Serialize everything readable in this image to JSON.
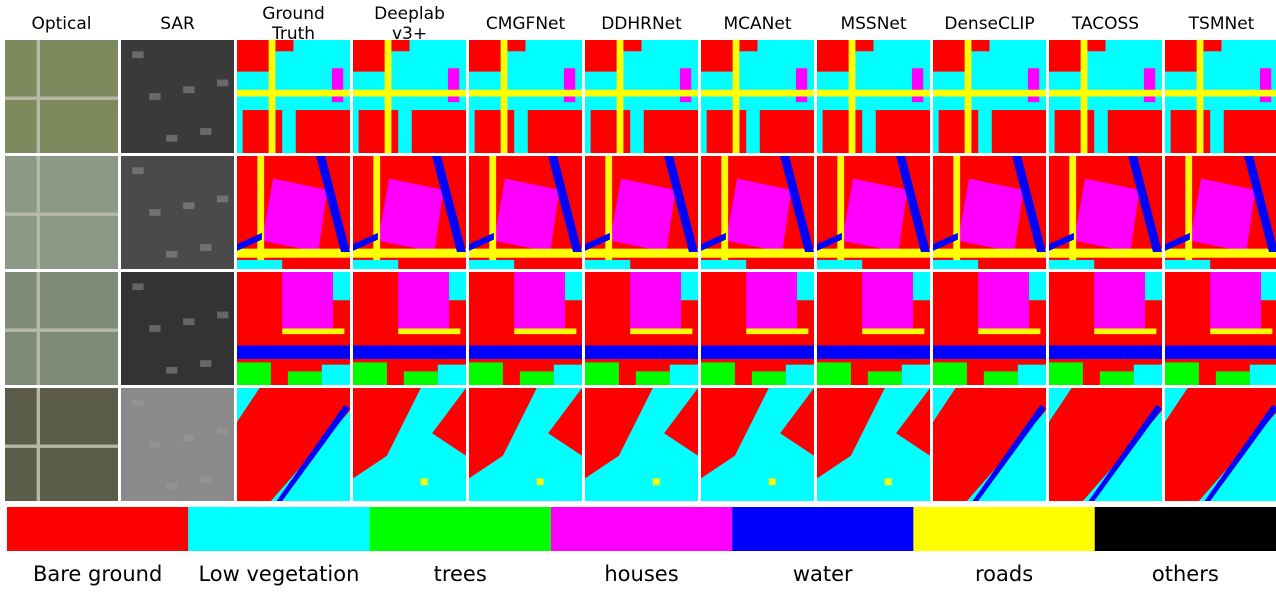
{
  "columns": [
    {
      "lines": [
        "Optical"
      ]
    },
    {
      "lines": [
        "SAR"
      ]
    },
    {
      "lines": [
        "Ground",
        "Truth"
      ]
    },
    {
      "lines": [
        "Deeplab",
        "v3+"
      ]
    },
    {
      "lines": [
        "CMGFNet"
      ]
    },
    {
      "lines": [
        "DDHRNet"
      ]
    },
    {
      "lines": [
        "MCANet"
      ]
    },
    {
      "lines": [
        "MSSNet"
      ]
    },
    {
      "lines": [
        "DenseCLIP"
      ]
    },
    {
      "lines": [
        "TACOSS"
      ]
    },
    {
      "lines": [
        "TSMNet"
      ]
    }
  ],
  "legend": [
    {
      "label": "Bare ground",
      "color": "#ff0000"
    },
    {
      "label": "Low vegetation",
      "color": "#00ffff"
    },
    {
      "label": "trees",
      "color": "#00ff00"
    },
    {
      "label": "houses",
      "color": "#ff00ff"
    },
    {
      "label": "water",
      "color": "#0000ff"
    },
    {
      "label": "roads",
      "color": "#ffff00"
    },
    {
      "label": "others",
      "color": "#000000"
    }
  ]
}
